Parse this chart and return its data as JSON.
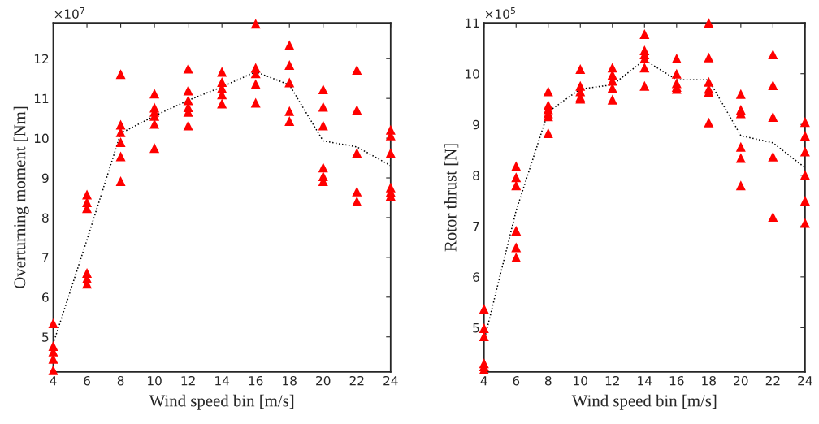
{
  "chart_data": [
    {
      "type": "scatter",
      "xlabel": "Wind speed bin [m/s]",
      "ylabel": "Overturning moment [Nm]",
      "annotations": [
        "×10$^{7}$"
      ],
      "xlim": [
        4,
        24
      ],
      "ylim": [
        4.12,
        12.9
      ],
      "xticks": [
        4,
        6,
        8,
        10,
        12,
        14,
        16,
        18,
        20,
        22,
        24
      ],
      "yticks": [
        5,
        6,
        7,
        8,
        9,
        10,
        11,
        12
      ],
      "grid": false,
      "legend": false,
      "series": [
        {
          "color": "#ff0000",
          "marker": "triangle",
          "x": [
            4,
            4,
            4,
            4,
            4,
            6,
            6,
            6,
            6,
            6,
            6,
            8,
            8,
            8,
            8,
            8,
            8,
            10,
            10,
            10,
            10,
            10,
            10,
            12,
            12,
            12,
            12,
            12,
            12,
            14,
            14,
            14,
            14,
            14,
            16,
            16,
            16,
            16,
            16,
            18,
            18,
            18,
            18,
            18,
            20,
            20,
            20,
            20,
            20,
            20,
            22,
            22,
            22,
            22,
            22,
            24,
            24,
            24,
            24,
            24,
            24
          ],
          "values": [
            5.34,
            4.77,
            4.63,
            4.45,
            4.16,
            8.58,
            8.39,
            8.24,
            6.61,
            6.47,
            6.34,
            11.61,
            10.34,
            10.15,
            9.9,
            9.54,
            8.92,
            11.12,
            10.77,
            10.66,
            10.56,
            10.36,
            9.75,
            11.75,
            11.2,
            10.95,
            10.78,
            10.66,
            10.32,
            11.67,
            11.41,
            11.26,
            11.1,
            10.87,
            12.88,
            11.77,
            11.63,
            11.36,
            10.89,
            12.34,
            11.84,
            11.4,
            10.68,
            10.43,
            11.23,
            10.79,
            10.32,
            9.26,
            9.04,
            8.92,
            11.72,
            10.71,
            9.63,
            8.66,
            8.41,
            10.21,
            10.07,
            9.63,
            8.76,
            8.65,
            8.55
          ]
        },
        {
          "type": "line",
          "color": "#000000",
          "line_style": "dotted",
          "marker": "none",
          "x": [
            4,
            6,
            8,
            10,
            12,
            14,
            16,
            18,
            20,
            22,
            24
          ],
          "values": [
            4.83,
            7.44,
            10.12,
            10.56,
            10.95,
            11.29,
            11.67,
            11.34,
            9.93,
            9.78,
            9.31
          ]
        }
      ]
    },
    {
      "type": "scatter",
      "xlabel": "Wind speed bin [m/s]",
      "ylabel": "Rotor thrust [N]",
      "annotations": [
        "×10$^{5}$"
      ],
      "xlim": [
        4,
        24
      ],
      "ylim": [
        4.13,
        11
      ],
      "xticks": [
        4,
        6,
        8,
        10,
        12,
        14,
        16,
        18,
        20,
        22,
        24
      ],
      "yticks": [
        5,
        6,
        7,
        8,
        9,
        10,
        11
      ],
      "grid": false,
      "legend": false,
      "series": [
        {
          "color": "#ff0000",
          "marker": "triangle",
          "x": [
            4,
            4,
            4,
            4,
            4,
            4,
            6,
            6,
            6,
            6,
            6,
            6,
            8,
            8,
            8,
            8,
            8,
            8,
            10,
            10,
            10,
            10,
            10,
            12,
            12,
            12,
            12,
            12,
            14,
            14,
            14,
            14,
            14,
            14,
            16,
            16,
            16,
            16,
            16,
            18,
            18,
            18,
            18,
            18,
            18,
            20,
            20,
            20,
            20,
            20,
            20,
            22,
            22,
            22,
            22,
            22,
            24,
            24,
            24,
            24,
            24,
            24
          ],
          "values": [
            5.37,
            4.99,
            4.83,
            4.3,
            4.24,
            4.18,
            8.18,
            7.96,
            7.8,
            6.91,
            6.58,
            6.38,
            9.65,
            9.38,
            9.3,
            9.22,
            9.16,
            8.83,
            10.09,
            9.76,
            9.65,
            9.54,
            9.51,
            10.12,
            9.98,
            9.86,
            9.72,
            9.49,
            10.78,
            10.46,
            10.38,
            10.3,
            10.12,
            9.76,
            10.3,
            10.0,
            9.81,
            9.74,
            9.7,
            11.0,
            10.32,
            9.84,
            9.7,
            9.64,
            9.04,
            9.6,
            9.29,
            9.22,
            8.56,
            8.34,
            7.8,
            10.38,
            9.77,
            9.15,
            8.37,
            7.18,
            9.05,
            8.78,
            8.47,
            8.01,
            7.5,
            7.06
          ]
        },
        {
          "type": "line",
          "color": "#000000",
          "line_style": "dotted",
          "marker": "none",
          "x": [
            4,
            6,
            8,
            10,
            12,
            14,
            16,
            18,
            20,
            22,
            24
          ],
          "values": [
            4.74,
            7.3,
            9.25,
            9.7,
            9.78,
            10.27,
            9.88,
            9.88,
            8.78,
            8.64,
            8.15
          ]
        }
      ]
    }
  ]
}
